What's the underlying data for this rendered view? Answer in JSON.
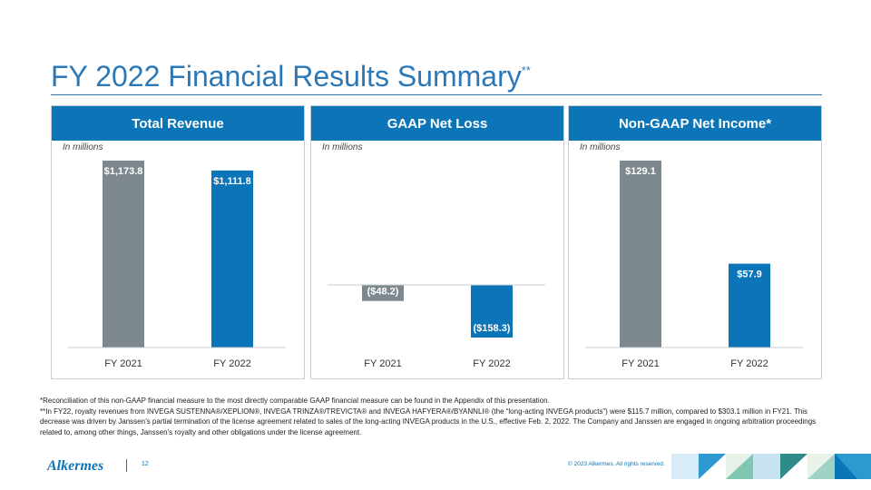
{
  "title": "FY 2022 Financial Results Summary",
  "title_mark": "**",
  "colors": {
    "accent": "#0b75b8",
    "bar_prior": "#7d878e",
    "bar_current": "#0b75b8"
  },
  "chart_data": [
    {
      "type": "bar",
      "title": "Total Revenue",
      "units_label": "In millions",
      "categories": [
        "FY 2021",
        "FY 2022"
      ],
      "values": [
        1173.8,
        1111.8
      ],
      "value_labels": [
        "$1,173.8",
        "$1,111.8"
      ]
    },
    {
      "type": "bar",
      "title": "GAAP Net Loss",
      "units_label": "In millions",
      "categories": [
        "FY 2021",
        "FY 2022"
      ],
      "values": [
        -48.2,
        -158.3
      ],
      "value_labels": [
        "($48.2)",
        "($158.3)"
      ]
    },
    {
      "type": "bar",
      "title": "Non-GAAP Net Income*",
      "units_label": "In millions",
      "categories": [
        "FY 2021",
        "FY 2022"
      ],
      "values": [
        129.1,
        57.9
      ],
      "value_labels": [
        "$129.1",
        "$57.9"
      ]
    }
  ],
  "footnotes": [
    "*Reconciliation of this non-GAAP financial measure to the most directly comparable GAAP financial measure can be found in the Appendix of this presentation.",
    "**In FY22, royalty revenues from INVEGA SUSTENNA®/XEPLION®, INVEGA TRINZA®/TREVICTA® and INVEGA HAFYERA®/BYANNLI® (the “long-acting INVEGA products”) were $115.7 million, compared to $303.1 million in FY21. This decrease was driven by Janssen’s partial termination of the license agreement related to sales of the long-acting INVEGA products in the U.S., effective Feb. 2, 2022. The Company and Janssen are engaged in ongoing arbitration proceedings related to, among other things, Janssen’s royalty and other obligations under the license agreement."
  ],
  "footer": {
    "logo": "Alkermes",
    "page_number": "12",
    "copyright": "© 2023 Alkermes. All rights reserved."
  }
}
